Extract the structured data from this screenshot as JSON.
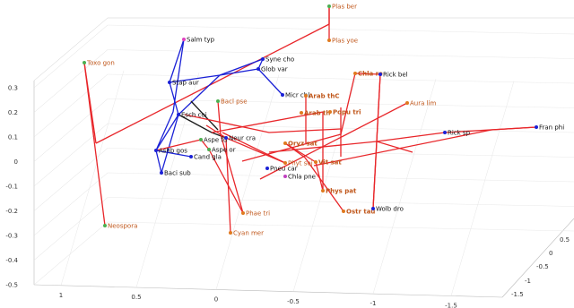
{
  "chart_data": {
    "type": "scatter",
    "title": "",
    "xlabel": "",
    "ylabel": "",
    "zlabel": "",
    "grid": true,
    "x_ticks": [
      "1",
      "0.5",
      "0",
      "-0.5",
      "-1",
      "-1.5"
    ],
    "y_ticks": [
      "0.5",
      "0",
      "-0.5",
      "-1",
      "-1.5"
    ],
    "z_ticks": [
      "0.3",
      "0.2",
      "0.1",
      "0",
      "-0.1",
      "-0.2",
      "-0.3",
      "-0.4",
      "-0.5"
    ],
    "zlim": [
      -0.5,
      0.3
    ],
    "colors": {
      "red": "#e8262a",
      "blue": "#1a21d6",
      "black": "#1b1b1b",
      "orange_text": "#c0571b",
      "dark_text": "#111111"
    },
    "nodes": [
      {
        "id": "plas_ber",
        "label": "Plas ber",
        "marker": "#4caf50",
        "text_color": "#c0571b",
        "bold": false
      },
      {
        "id": "plas_yoe",
        "label": "Plas yoe",
        "marker": "#e07a1f",
        "text_color": "#c0571b",
        "bold": false
      },
      {
        "id": "toxo_gon",
        "label": "Toxo gon",
        "marker": "#4caf50",
        "text_color": "#c0571b",
        "bold": false
      },
      {
        "id": "neospora",
        "label": "Neospora",
        "marker": "#4caf50",
        "text_color": "#c0571b",
        "bold": false
      },
      {
        "id": "salm_typ",
        "label": "Salm typ",
        "marker": "#e040c0",
        "text_color": "#111111",
        "bold": false
      },
      {
        "id": "syne_cho",
        "label": "Syne cho",
        "marker": "#1a21d6",
        "text_color": "#111111",
        "bold": false
      },
      {
        "id": "glob_var",
        "label": "Glob var",
        "marker": "#1a21d6",
        "text_color": "#111111",
        "bold": false
      },
      {
        "id": "micr_chl",
        "label": "Micr chl",
        "marker": "#1a21d6",
        "text_color": "#111111",
        "bold": false
      },
      {
        "id": "stap_aur",
        "label": "Stap aur",
        "marker": "#1a21d6",
        "text_color": "#111111",
        "bold": false
      },
      {
        "id": "esch_coi",
        "label": "Esch coi",
        "marker": "#1a21d6",
        "text_color": "#111111",
        "bold": false
      },
      {
        "id": "bacl_pse",
        "label": "Bacl pse",
        "marker": "#4caf50",
        "text_color": "#c0571b",
        "bold": false
      },
      {
        "id": "arab_thc",
        "label": "Arab thC",
        "marker": "#e07a1f",
        "text_color": "#c0571b",
        "bold": true
      },
      {
        "id": "arab_th",
        "label": "Arab th",
        "marker": "#e07a1f",
        "text_color": "#c0571b",
        "bold": true
      },
      {
        "id": "popu_tri",
        "label": "Popu tri",
        "marker": "#e07a1f",
        "text_color": "#c0571b",
        "bold": true
      },
      {
        "id": "chla_re",
        "label": "Chla re",
        "marker": "#e07a1f",
        "text_color": "#c0571b",
        "bold": true
      },
      {
        "id": "rick_bel",
        "label": "Rick bel",
        "marker": "#1a21d6",
        "text_color": "#111111",
        "bold": false
      },
      {
        "id": "aura_lim",
        "label": "Aura lim",
        "marker": "#e07a1f",
        "text_color": "#c0571b",
        "bold": false
      },
      {
        "id": "rick_sp",
        "label": "Rick sp",
        "marker": "#1a21d6",
        "text_color": "#111111",
        "bold": false
      },
      {
        "id": "fran_phi",
        "label": "Fran phi",
        "marker": "#1a21d6",
        "text_color": "#111111",
        "bold": false
      },
      {
        "id": "aspe_fu",
        "label": "Aspe fu",
        "marker": "#4caf50",
        "text_color": "#111111",
        "bold": false
      },
      {
        "id": "neur_cra",
        "label": "Neur cra",
        "marker": "#1a21d6",
        "text_color": "#111111",
        "bold": false
      },
      {
        "id": "aspe_or",
        "label": "Aspe or",
        "marker": "#4caf50",
        "text_color": "#111111",
        "bold": false
      },
      {
        "id": "ashb_gos",
        "label": "Ashb gos",
        "marker": "#1a21d6",
        "text_color": "#111111",
        "bold": false
      },
      {
        "id": "cand_gla",
        "label": "Cand gla",
        "marker": "#1a21d6",
        "text_color": "#111111",
        "bold": false
      },
      {
        "id": "bacl_sub",
        "label": "Baci sub",
        "marker": "#1a21d6",
        "text_color": "#111111",
        "bold": false
      },
      {
        "id": "oryz_sat",
        "label": "Oryz sat",
        "marker": "#e07a1f",
        "text_color": "#c0571b",
        "bold": true
      },
      {
        "id": "phyt_soj",
        "label": "Phyt soj",
        "marker": "#e07a1f",
        "text_color": "#c0571b",
        "bold": false
      },
      {
        "id": "pneu_car",
        "label": "Pneu car",
        "marker": "#1a21d6",
        "text_color": "#111111",
        "bold": false
      },
      {
        "id": "chla_pne",
        "label": "Chla pne",
        "marker": "#c040c0",
        "text_color": "#111111",
        "bold": false
      },
      {
        "id": "vit_sat",
        "label": "Vit sat",
        "marker": "#e07a1f",
        "text_color": "#c0571b",
        "bold": true
      },
      {
        "id": "phys_pat",
        "label": "Phys pat",
        "marker": "#e07a1f",
        "text_color": "#c0571b",
        "bold": true
      },
      {
        "id": "ostr_tau",
        "label": "Ostr tau",
        "marker": "#e07a1f",
        "text_color": "#c0571b",
        "bold": true
      },
      {
        "id": "wolb_dro",
        "label": "Wolb dro",
        "marker": "#1a21d6",
        "text_color": "#111111",
        "bold": false
      },
      {
        "id": "phae_tri",
        "label": "Phae tri",
        "marker": "#e07a1f",
        "text_color": "#c0571b",
        "bold": false
      },
      {
        "id": "cyan_mer",
        "label": "Cyan mer",
        "marker": "#e07a1f",
        "text_color": "#c0571b",
        "bold": false
      }
    ],
    "edges": [
      {
        "from": "plas_ber",
        "to": "plas_yoe",
        "color": "red"
      },
      {
        "from": "toxo_gon",
        "to": "neospora",
        "color": "red"
      },
      {
        "from": "salm_typ",
        "to": "stap_aur",
        "color": "blue"
      },
      {
        "from": "stap_aur",
        "to": "esch_coi",
        "color": "blue"
      },
      {
        "from": "syne_cho",
        "to": "glob_var",
        "color": "blue"
      },
      {
        "from": "glob_var",
        "to": "micr_chl",
        "color": "blue"
      },
      {
        "from": "esch_coi",
        "to": "ashb_gos",
        "color": "blue"
      },
      {
        "from": "ashb_gos",
        "to": "bacl_sub",
        "color": "blue"
      },
      {
        "from": "ashb_gos",
        "to": "cand_gla",
        "color": "blue"
      },
      {
        "from": "aspe_fu",
        "to": "aspe_or",
        "color": "red"
      },
      {
        "from": "aspe_or",
        "to": "phae_tri",
        "color": "red"
      },
      {
        "from": "neur_cra",
        "to": "phyt_soj",
        "color": "red"
      },
      {
        "from": "oryz_sat",
        "to": "vit_sat",
        "color": "red"
      },
      {
        "from": "vit_sat",
        "to": "phys_pat",
        "color": "red"
      },
      {
        "from": "rick_sp",
        "to": "fran_phi",
        "color": "red"
      },
      {
        "from": "chla_re",
        "to": "rick_bel",
        "color": "red"
      },
      {
        "from": "rick_bel",
        "to": "wolb_dro",
        "color": "red"
      }
    ]
  }
}
